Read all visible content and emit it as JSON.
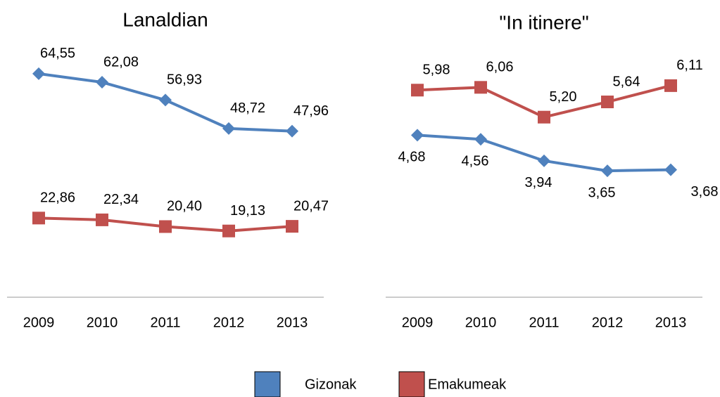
{
  "chart_data": [
    {
      "type": "line",
      "title": "Lanaldian",
      "categories": [
        "2009",
        "2010",
        "2011",
        "2012",
        "2013"
      ],
      "ylim": [
        0,
        70
      ],
      "series": [
        {
          "name": "Gizonak",
          "color": "#4f81bd",
          "marker": "diamond",
          "label_position": "above",
          "values": [
            64.55,
            62.08,
            56.93,
            48.72,
            47.96
          ],
          "value_labels": [
            "64,55",
            "62,08",
            "56,93",
            "48,72",
            "47,96"
          ]
        },
        {
          "name": "Emakumeak",
          "color": "#c0504d",
          "marker": "square",
          "label_position": "above",
          "values": [
            22.86,
            22.34,
            20.4,
            19.13,
            20.47
          ],
          "value_labels": [
            "22,86",
            "22,34",
            "20,40",
            "19,13",
            "20,47"
          ]
        }
      ]
    },
    {
      "type": "line",
      "title": "\"In itinere\"",
      "categories": [
        "2009",
        "2010",
        "2011",
        "2012",
        "2013"
      ],
      "ylim": [
        0,
        7
      ],
      "series": [
        {
          "name": "Gizonak",
          "color": "#4f81bd",
          "marker": "diamond",
          "label_position": "below",
          "values": [
            4.68,
            4.56,
            3.94,
            3.65,
            3.68
          ],
          "value_labels": [
            "4,68",
            "4,56",
            "3,94",
            "3,65",
            "3,68"
          ]
        },
        {
          "name": "Emakumeak",
          "color": "#c0504d",
          "marker": "square",
          "label_position": "above",
          "values": [
            5.98,
            6.06,
            5.2,
            5.64,
            6.11
          ],
          "value_labels": [
            "5,98",
            "6,06",
            "5,20",
            "5,64",
            "6,11"
          ]
        }
      ]
    }
  ]
}
